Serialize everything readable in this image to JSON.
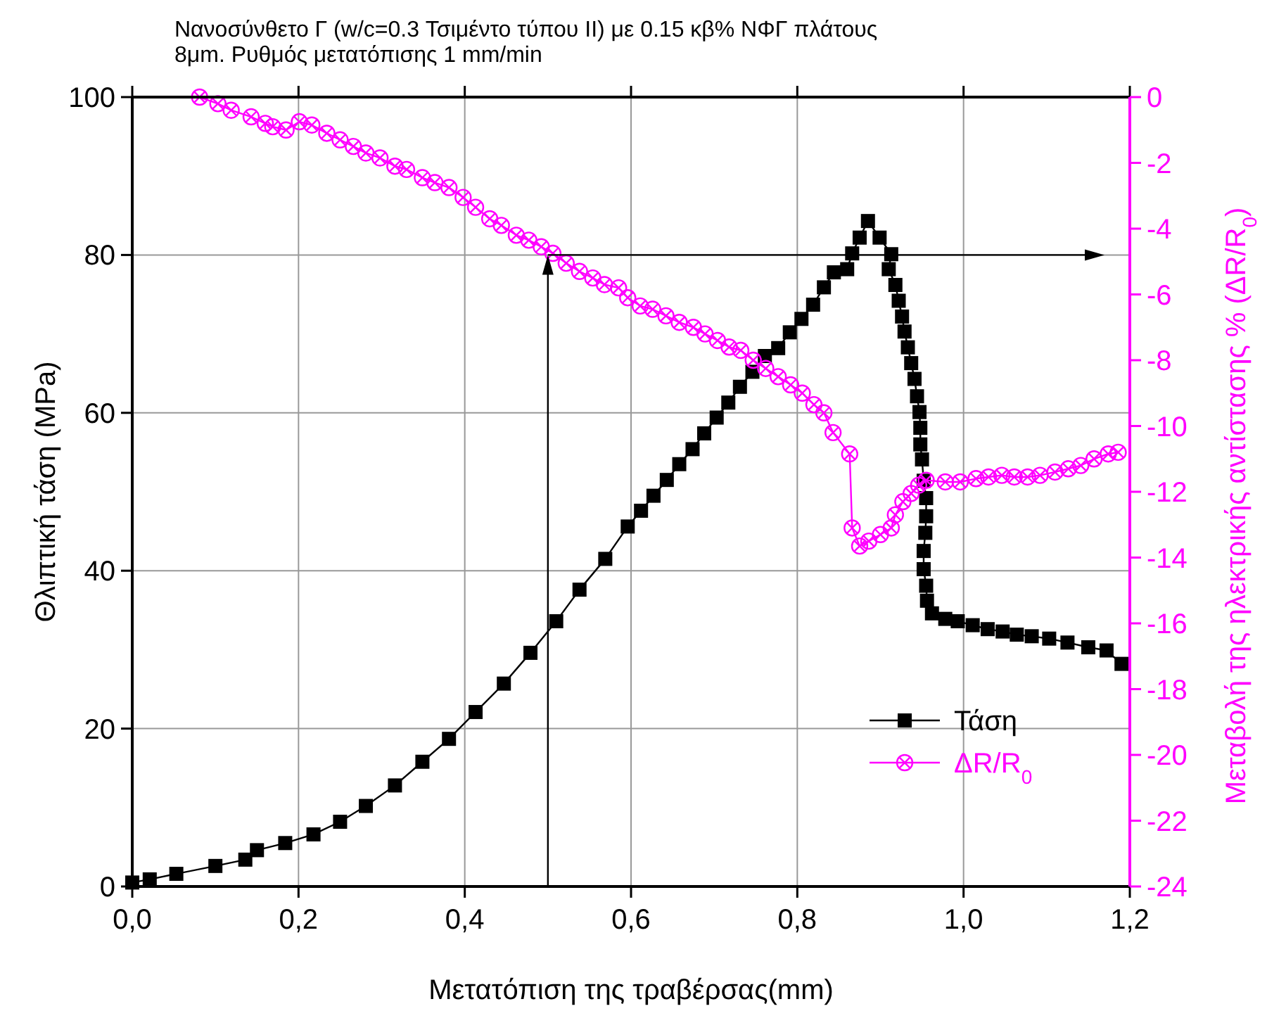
{
  "chart_data": {
    "type": "line",
    "title": "Νανοσύνθετο Γ (w/c=0.3 Τσιμέντο τύπου ΙΙ) με 0.15 κβ% ΝΦΓ πλάτους 8μm. Ρυθμός μετατόπισης 1 mm/min",
    "xlabel": "Μετατόπιση της τραβέρσας(mm)",
    "ylabel": "Θλιπτική τάση (MPa)",
    "y2label": "Μεταβολή της ηλεκτρικής αντίστασης % (ΔR/R$_{0}$)",
    "xlim": [
      0,
      1.2
    ],
    "xticks": [
      {
        "value": 0,
        "label": "0,0"
      },
      {
        "value": 0.2,
        "label": "0,2"
      },
      {
        "value": 0.4,
        "label": "0,4"
      },
      {
        "value": 0.6,
        "label": "0,6"
      },
      {
        "value": 0.8,
        "label": "0,8"
      },
      {
        "value": 1,
        "label": "1,0"
      },
      {
        "value": 1.2,
        "label": "1,2"
      }
    ],
    "ylim": [
      0,
      100
    ],
    "yticks": [
      0,
      20,
      40,
      60,
      80,
      100
    ],
    "y2lim": [
      -24,
      0
    ],
    "y2ticks": [
      -24,
      -22,
      -20,
      -18,
      -16,
      -14,
      -12,
      -10,
      -8,
      -6,
      -4,
      -2,
      0
    ],
    "grid": true,
    "legend": "bottom right",
    "line_style": "solid",
    "ref_lines": [
      {
        "axis": "x",
        "value": 0.5,
        "color": "#000000"
      },
      {
        "axis": "y",
        "value": 80,
        "color": "#000000"
      }
    ],
    "series": [
      {
        "name": "Τάση",
        "color": "#000000",
        "marker": "square",
        "x": [
          0,
          0.021,
          0.053,
          0.1,
          0.136,
          0.15,
          0.184,
          0.218,
          0.25,
          0.281,
          0.316,
          0.349,
          0.381,
          0.413,
          0.447,
          0.479,
          0.51,
          0.538,
          0.569,
          0.596,
          0.612,
          0.627,
          0.643,
          0.658,
          0.674,
          0.688,
          0.703,
          0.717,
          0.731,
          0.746,
          0.761,
          0.777,
          0.791,
          0.805,
          0.819,
          0.832,
          0.844,
          0.86,
          0.866,
          0.875,
          0.885,
          0.899,
          0.913,
          0.91,
          0.918,
          0.922,
          0.926,
          0.929,
          0.933,
          0.937,
          0.941,
          0.944,
          0.947,
          0.948,
          0.948,
          0.95,
          0.952,
          0.955,
          0.955,
          0.954,
          0.952,
          0.952,
          0.955,
          0.956,
          0.962,
          0.978,
          0.993,
          1.011,
          1.029,
          1.047,
          1.064,
          1.082,
          1.103,
          1.125,
          1.15,
          1.172,
          1.19
        ],
        "values": [
          0.5,
          0.9,
          1.6,
          2.6,
          3.4,
          4.6,
          5.5,
          6.6,
          8.2,
          10.2,
          12.8,
          15.8,
          18.7,
          22.1,
          25.7,
          29.6,
          33.6,
          37.6,
          41.5,
          45.6,
          47.6,
          49.5,
          51.5,
          53.5,
          55.4,
          57.4,
          59.4,
          61.3,
          63.3,
          65.2,
          67.2,
          68.2,
          70.2,
          71.9,
          73.7,
          75.9,
          77.8,
          78.2,
          80.2,
          82.2,
          84.3,
          82.2,
          80.1,
          78.2,
          76.2,
          74.2,
          72.2,
          70.3,
          68.3,
          66.3,
          64.3,
          62.1,
          60.1,
          58.1,
          56,
          54.1,
          51.4,
          49.2,
          46.9,
          44.8,
          42.5,
          40.2,
          38.1,
          36.2,
          34.6,
          33.9,
          33.6,
          33.1,
          32.6,
          32.3,
          31.9,
          31.7,
          31.4,
          30.9,
          30.3,
          29.9,
          28.2
        ]
      },
      {
        "name": "ΔR/R$_{0}$",
        "color": "#ff00ff",
        "marker": "circle",
        "axis": "y2",
        "x": [
          0.081,
          0.103,
          0.119,
          0.143,
          0.16,
          0.169,
          0.185,
          0.201,
          0.216,
          0.234,
          0.25,
          0.266,
          0.281,
          0.298,
          0.316,
          0.33,
          0.349,
          0.364,
          0.381,
          0.398,
          0.413,
          0.43,
          0.444,
          0.462,
          0.477,
          0.492,
          0.506,
          0.522,
          0.538,
          0.554,
          0.568,
          0.585,
          0.596,
          0.611,
          0.626,
          0.642,
          0.658,
          0.675,
          0.689,
          0.704,
          0.718,
          0.732,
          0.747,
          0.762,
          0.777,
          0.792,
          0.806,
          0.82,
          0.832,
          0.843,
          0.863,
          0.866,
          0.875,
          0.886,
          0.9,
          0.913,
          0.918,
          0.927,
          0.937,
          0.946,
          0.955,
          0.978,
          0.996,
          1.015,
          1.03,
          1.046,
          1.061,
          1.077,
          1.092,
          1.11,
          1.126,
          1.141,
          1.157,
          1.174,
          1.186
        ],
        "values": [
          0,
          -0.2,
          -0.4,
          -0.6,
          -0.8,
          -0.9,
          -1,
          -0.75,
          -0.85,
          -1.1,
          -1.3,
          -1.5,
          -1.7,
          -1.85,
          -2.1,
          -2.2,
          -2.45,
          -2.6,
          -2.75,
          -3.05,
          -3.35,
          -3.7,
          -3.9,
          -4.2,
          -4.35,
          -4.55,
          -4.75,
          -5.05,
          -5.3,
          -5.5,
          -5.7,
          -5.8,
          -6.1,
          -6.35,
          -6.45,
          -6.65,
          -6.85,
          -7,
          -7.2,
          -7.4,
          -7.6,
          -7.7,
          -8,
          -8.25,
          -8.5,
          -8.75,
          -9,
          -9.35,
          -9.6,
          -10.2,
          -10.85,
          -13.1,
          -13.65,
          -13.5,
          -13.3,
          -13.1,
          -12.7,
          -12.3,
          -12.05,
          -11.8,
          -11.65,
          -11.7,
          -11.7,
          -11.6,
          -11.55,
          -11.5,
          -11.55,
          -11.55,
          -11.5,
          -11.4,
          -11.3,
          -11.2,
          -11,
          -10.85,
          -10.8
        ]
      }
    ]
  }
}
